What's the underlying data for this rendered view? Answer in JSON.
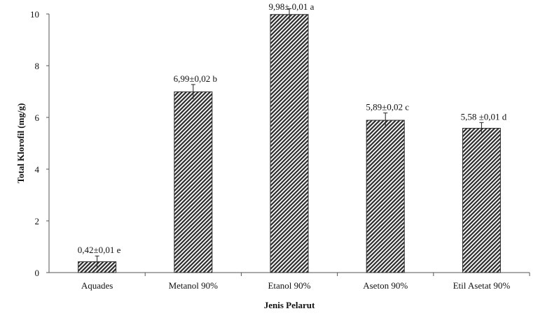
{
  "chart_data": {
    "type": "bar",
    "xlabel": "Jenis Pelarut",
    "ylabel": "Total Klorofil (mg/g)",
    "ylim": [
      0,
      10
    ],
    "yticks": [
      0,
      2,
      4,
      6,
      8,
      10
    ],
    "grid": false,
    "categories": [
      "Aquades",
      "Metanol 90%",
      "Etanol 90%",
      "Aseton 90%",
      "Etil Asetat 90%"
    ],
    "values": [
      0.42,
      6.99,
      9.98,
      5.89,
      5.58
    ],
    "errors": [
      0.01,
      0.02,
      0.01,
      0.02,
      0.01
    ],
    "data_labels": [
      "0,42±0,01 e",
      "6,99±0,02 b",
      "9,98± 0,01 a",
      "5,89±0,02 c",
      "5,58 ±0,01 d"
    ],
    "bar_color": "#333333",
    "bar_pattern": "diagonal-hatch"
  }
}
